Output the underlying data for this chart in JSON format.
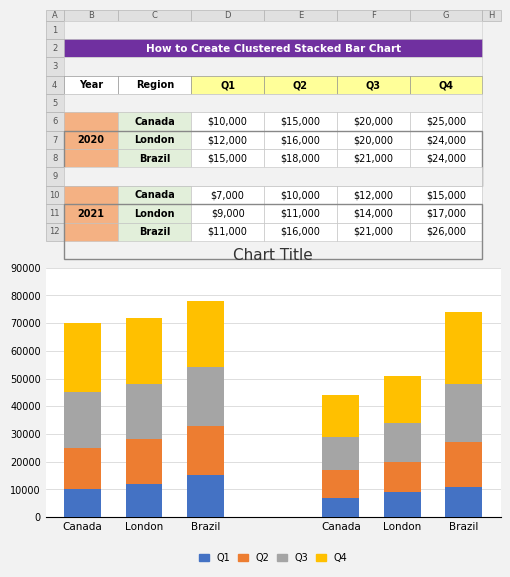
{
  "title_text": "How to Create Clustered Stacked Bar Chart",
  "title_bg": "#7030a0",
  "title_color": "#ffffff",
  "header_row": [
    "Year",
    "Region",
    "Q1",
    "Q2",
    "Q3",
    "Q4"
  ],
  "header_colors": [
    "#ffffff",
    "#ffffff",
    "#ffff99",
    "#ffff99",
    "#ffff99",
    "#ffff99"
  ],
  "year_2020": {
    "year": "2020",
    "year_bg": "#f4b183",
    "regions": [
      "Canada",
      "London",
      "Brazil"
    ],
    "region_bg": "#e2efda",
    "Q1": [
      10000,
      12000,
      15000
    ],
    "Q2": [
      15000,
      16000,
      18000
    ],
    "Q3": [
      20000,
      20000,
      21000
    ],
    "Q4": [
      25000,
      24000,
      24000
    ]
  },
  "year_2021": {
    "year": "2021",
    "year_bg": "#f4b183",
    "regions": [
      "Canada",
      "London",
      "Brazil"
    ],
    "region_bg": "#e2efda",
    "Q1": [
      7000,
      9000,
      11000
    ],
    "Q2": [
      10000,
      11000,
      16000
    ],
    "Q3": [
      12000,
      14000,
      21000
    ],
    "Q4": [
      15000,
      17000,
      26000
    ]
  },
  "chart_title": "Chart Title",
  "bar_colors": [
    "#4472c4",
    "#ed7d31",
    "#a5a5a5",
    "#ffc000"
  ],
  "quarters": [
    "Q1",
    "Q2",
    "Q3",
    "Q4"
  ],
  "ylim": [
    0,
    90000
  ],
  "yticks": [
    0,
    10000,
    20000,
    30000,
    40000,
    50000,
    60000,
    70000,
    80000,
    90000
  ],
  "excel_bg": "#f2f2f2",
  "cell_bg": "#ffffff",
  "grid_color": "#bfbfbf",
  "chart_bg": "#ffffff"
}
